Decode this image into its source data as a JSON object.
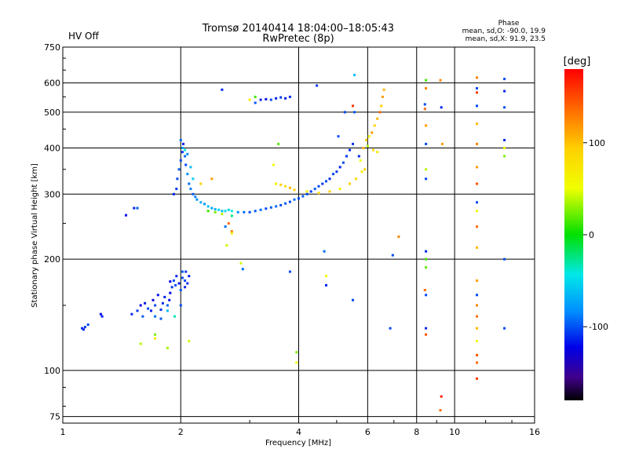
{
  "header": {
    "status": "HV Off",
    "status_color": "#e01818",
    "title": "Tromsø 20140414 18:04:00–18:05:43",
    "subtitle": "RwPretec (8p)",
    "phase_title": "Phase",
    "phase_o": "mean, sd,O: -90.0, 19.9",
    "phase_x": "mean, sd,X:  91.9, 23.5"
  },
  "chart_data": {
    "type": "scatter",
    "xlabel": "Frequency [MHz]",
    "ylabel": "Stationary phase Virtual Height [km]",
    "x_scale": "log",
    "y_scale": "log",
    "xlim": [
      1,
      16
    ],
    "ylim": [
      72,
      750
    ],
    "x_ticks": [
      1,
      2,
      4,
      6,
      8,
      10,
      16
    ],
    "x_tick_labels": [
      "1",
      "2",
      "4",
      "6",
      "8",
      "10",
      "16"
    ],
    "y_ticks": [
      75,
      100,
      200,
      300,
      400,
      500,
      600,
      750
    ],
    "y_tick_labels": [
      "75",
      "100",
      "200",
      "300",
      "400",
      "500",
      "600",
      "750"
    ],
    "grid": true,
    "colorbar": {
      "label": "[deg]",
      "range": [
        -180,
        180
      ],
      "ticks": [
        100,
        0,
        -100
      ],
      "tick_labels": [
        "100",
        "0",
        "-100"
      ]
    },
    "series": [
      {
        "points": [
          [
            1.12,
            130,
            -110
          ],
          [
            1.14,
            131,
            -105
          ],
          [
            1.16,
            133,
            -100
          ],
          [
            1.13,
            129,
            -108
          ],
          [
            1.26,
            140,
            -112
          ],
          [
            1.25,
            142,
            -120
          ],
          [
            1.45,
            263,
            -115
          ],
          [
            1.52,
            275,
            -110
          ],
          [
            1.55,
            275,
            -95
          ],
          [
            1.5,
            142,
            -110
          ],
          [
            1.55,
            145,
            -105
          ],
          [
            1.58,
            150,
            -120
          ],
          [
            1.6,
            140,
            -95
          ],
          [
            1.62,
            152,
            -115
          ],
          [
            1.65,
            147,
            -100
          ],
          [
            1.68,
            145,
            -110
          ],
          [
            1.7,
            155,
            -125
          ],
          [
            1.72,
            150,
            -100
          ],
          [
            1.75,
            160,
            -115
          ],
          [
            1.78,
            146,
            -105
          ],
          [
            1.8,
            152,
            -108
          ],
          [
            1.82,
            158,
            -112
          ],
          [
            1.85,
            150,
            -95
          ],
          [
            1.88,
            162,
            -118
          ],
          [
            1.9,
            168,
            -105
          ],
          [
            1.92,
            175,
            -100
          ],
          [
            1.95,
            180,
            -110
          ],
          [
            1.98,
            172,
            -115
          ],
          [
            2.0,
            165,
            -95
          ],
          [
            2.02,
            178,
            -100
          ],
          [
            2.05,
            168,
            -110
          ],
          [
            2.08,
            172,
            -108
          ],
          [
            2.1,
            180,
            -112
          ],
          [
            1.72,
            140,
            -90
          ],
          [
            1.78,
            138,
            -95
          ],
          [
            1.85,
            145,
            -60
          ],
          [
            1.93,
            140,
            -30
          ],
          [
            2.0,
            150,
            -100
          ],
          [
            1.87,
            155,
            -115
          ],
          [
            1.88,
            174,
            -120
          ],
          [
            1.94,
            170,
            -100
          ],
          [
            2.02,
            185,
            -95
          ],
          [
            2.06,
            185,
            -105
          ],
          [
            2.05,
            175,
            -100
          ],
          [
            1.58,
            118,
            60
          ],
          [
            1.72,
            125,
            40
          ],
          [
            1.85,
            115,
            55
          ],
          [
            1.72,
            122,
            90
          ],
          [
            2.1,
            120,
            70
          ],
          [
            1.92,
            300,
            -110
          ],
          [
            1.95,
            310,
            -105
          ],
          [
            1.96,
            330,
            -100
          ],
          [
            1.98,
            350,
            -95
          ],
          [
            2.0,
            370,
            -100
          ],
          [
            2.02,
            390,
            -105
          ],
          [
            2.03,
            410,
            -110
          ],
          [
            2.05,
            380,
            -90
          ],
          [
            2.06,
            360,
            -100
          ],
          [
            2.08,
            340,
            -80
          ],
          [
            2.1,
            320,
            -90
          ],
          [
            2.12,
            310,
            -85
          ],
          [
            2.15,
            300,
            -95
          ],
          [
            2.18,
            295,
            -85
          ],
          [
            2.2,
            290,
            -80
          ],
          [
            2.25,
            285,
            -70
          ],
          [
            2.3,
            282,
            -75
          ],
          [
            2.35,
            278,
            -60
          ],
          [
            2.4,
            275,
            -70
          ],
          [
            2.45,
            273,
            -65
          ],
          [
            2.5,
            272,
            -50
          ],
          [
            2.55,
            270,
            -60
          ],
          [
            2.6,
            270,
            -45
          ],
          [
            2.65,
            272,
            -50
          ],
          [
            2.7,
            270,
            -40
          ],
          [
            2.8,
            268,
            -80
          ],
          [
            2.9,
            268,
            -90
          ],
          [
            3.0,
            268,
            -100
          ],
          [
            3.1,
            270,
            -95
          ],
          [
            3.2,
            272,
            -90
          ],
          [
            3.3,
            274,
            -100
          ],
          [
            3.4,
            276,
            -95
          ],
          [
            3.5,
            278,
            -90
          ],
          [
            3.6,
            280,
            -100
          ],
          [
            3.7,
            283,
            -95
          ],
          [
            3.8,
            286,
            -100
          ],
          [
            3.9,
            290,
            -90
          ],
          [
            4.0,
            292,
            -100
          ],
          [
            4.1,
            296,
            -95
          ],
          [
            4.2,
            300,
            -100
          ],
          [
            4.3,
            305,
            -105
          ],
          [
            4.4,
            310,
            -95
          ],
          [
            4.5,
            315,
            -100
          ],
          [
            4.6,
            320,
            -105
          ],
          [
            4.7,
            325,
            -100
          ],
          [
            4.8,
            330,
            -110
          ],
          [
            4.9,
            340,
            -100
          ],
          [
            5.0,
            345,
            -105
          ],
          [
            5.1,
            355,
            -110
          ],
          [
            5.2,
            365,
            -100
          ],
          [
            5.3,
            380,
            -105
          ],
          [
            5.4,
            395,
            -110
          ],
          [
            5.5,
            410,
            -105
          ],
          [
            2.0,
            420,
            -90
          ],
          [
            2.02,
            400,
            -70
          ],
          [
            2.05,
            395,
            -40
          ],
          [
            2.08,
            385,
            -80
          ],
          [
            2.12,
            355,
            -60
          ],
          [
            2.15,
            330,
            -50
          ],
          [
            2.35,
            270,
            20
          ],
          [
            2.45,
            268,
            40
          ],
          [
            2.55,
            265,
            60
          ],
          [
            2.7,
            262,
            -20
          ],
          [
            2.25,
            320,
            100
          ],
          [
            2.4,
            330,
            120
          ],
          [
            2.6,
            245,
            -90
          ],
          [
            2.65,
            250,
            140
          ],
          [
            2.7,
            238,
            130
          ],
          [
            2.85,
            195,
            70
          ],
          [
            2.88,
            188,
            -90
          ],
          [
            3.5,
            320,
            90
          ],
          [
            3.6,
            318,
            100
          ],
          [
            3.7,
            315,
            95
          ],
          [
            3.8,
            312,
            110
          ],
          [
            3.9,
            308,
            100
          ],
          [
            4.2,
            305,
            90
          ],
          [
            4.5,
            302,
            95
          ],
          [
            4.8,
            305,
            100
          ],
          [
            5.1,
            310,
            85
          ],
          [
            5.4,
            320,
            100
          ],
          [
            5.6,
            330,
            95
          ],
          [
            5.8,
            345,
            90
          ],
          [
            5.9,
            350,
            100
          ],
          [
            5.85,
            400,
            110
          ],
          [
            5.95,
            420,
            100
          ],
          [
            6.05,
            430,
            80
          ],
          [
            6.15,
            440,
            120
          ],
          [
            6.25,
            460,
            100
          ],
          [
            6.35,
            480,
            110
          ],
          [
            6.45,
            500,
            140
          ],
          [
            6.5,
            520,
            100
          ],
          [
            6.55,
            550,
            120
          ],
          [
            6.6,
            575,
            110
          ],
          [
            6.35,
            390,
            90
          ],
          [
            6.2,
            395,
            95
          ],
          [
            6.0,
            405,
            60
          ],
          [
            5.7,
            380,
            -110
          ],
          [
            5.75,
            370,
            80
          ],
          [
            3.2,
            540,
            -110
          ],
          [
            3.3,
            542,
            -115
          ],
          [
            3.4,
            540,
            -100
          ],
          [
            3.5,
            545,
            -110
          ],
          [
            3.6,
            548,
            -105
          ],
          [
            3.7,
            545,
            -112
          ],
          [
            3.8,
            550,
            -108
          ],
          [
            3.1,
            530,
            -95
          ],
          [
            2.55,
            575,
            -110
          ],
          [
            4.45,
            590,
            -105
          ],
          [
            5.55,
            630,
            -60
          ],
          [
            5.5,
            520,
            160
          ],
          [
            5.25,
            500,
            -100
          ],
          [
            5.05,
            430,
            -100
          ],
          [
            5.55,
            500,
            -95
          ],
          [
            3.0,
            540,
            90
          ],
          [
            3.1,
            550,
            20
          ],
          [
            3.55,
            410,
            30
          ],
          [
            3.45,
            360,
            80
          ],
          [
            2.7,
            235,
            90
          ],
          [
            2.62,
            218,
            70
          ],
          [
            3.8,
            185,
            -100
          ],
          [
            3.95,
            112,
            40
          ],
          [
            3.95,
            105,
            80
          ],
          [
            4.65,
            210,
            -90
          ],
          [
            4.7,
            180,
            80
          ],
          [
            4.7,
            170,
            -110
          ],
          [
            5.5,
            155,
            -100
          ],
          [
            6.95,
            205,
            -100
          ],
          [
            7.2,
            230,
            130
          ],
          [
            6.85,
            130,
            -100
          ],
          [
            8.45,
            610,
            20
          ],
          [
            8.45,
            580,
            130
          ],
          [
            8.4,
            525,
            -100
          ],
          [
            8.4,
            510,
            140
          ],
          [
            8.45,
            460,
            120
          ],
          [
            8.45,
            410,
            -100
          ],
          [
            8.45,
            350,
            60
          ],
          [
            8.45,
            330,
            -100
          ],
          [
            8.45,
            210,
            -110
          ],
          [
            8.45,
            200,
            20
          ],
          [
            8.45,
            190,
            30
          ],
          [
            8.4,
            165,
            140
          ],
          [
            8.45,
            160,
            -100
          ],
          [
            8.45,
            130,
            -110
          ],
          [
            8.45,
            125,
            150
          ],
          [
            9.2,
            610,
            130
          ],
          [
            9.25,
            515,
            -110
          ],
          [
            9.3,
            410,
            120
          ],
          [
            9.25,
            85,
            170
          ],
          [
            9.2,
            78,
            140
          ],
          [
            11.4,
            620,
            130
          ],
          [
            11.4,
            580,
            -100
          ],
          [
            11.4,
            565,
            160
          ],
          [
            11.4,
            520,
            -100
          ],
          [
            11.4,
            465,
            110
          ],
          [
            11.4,
            410,
            130
          ],
          [
            11.4,
            355,
            120
          ],
          [
            11.4,
            320,
            150
          ],
          [
            11.4,
            285,
            -100
          ],
          [
            11.4,
            270,
            80
          ],
          [
            11.4,
            245,
            140
          ],
          [
            11.4,
            215,
            110
          ],
          [
            11.4,
            175,
            120
          ],
          [
            11.4,
            160,
            -100
          ],
          [
            11.4,
            150,
            130
          ],
          [
            11.4,
            140,
            140
          ],
          [
            11.4,
            130,
            110
          ],
          [
            11.4,
            120,
            80
          ],
          [
            11.4,
            110,
            150
          ],
          [
            11.4,
            105,
            140
          ],
          [
            11.4,
            95,
            160
          ],
          [
            13.4,
            615,
            -100
          ],
          [
            13.4,
            570,
            -110
          ],
          [
            13.4,
            515,
            -100
          ],
          [
            13.4,
            420,
            -110
          ],
          [
            13.4,
            400,
            80
          ],
          [
            13.4,
            200,
            -100
          ],
          [
            13.4,
            130,
            -100
          ],
          [
            13.4,
            380,
            40
          ]
        ]
      }
    ]
  }
}
